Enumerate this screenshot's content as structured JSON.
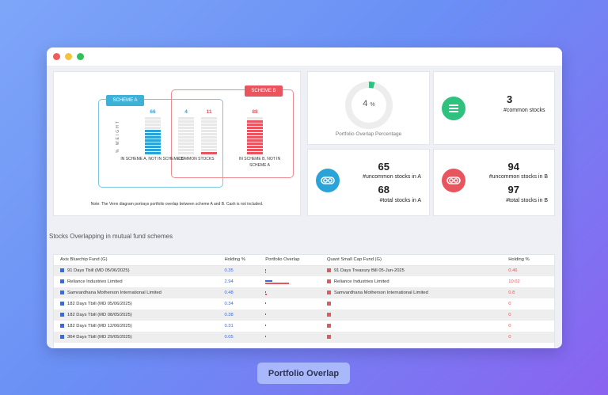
{
  "venn": {
    "scheme_a_label": "SCHEME A",
    "scheme_b_label": "SCHEME B",
    "weight_label": "% WEIGHT",
    "a_only_value": "66",
    "common_a_value": "4",
    "common_b_value": "11",
    "b_only_value": "88",
    "a_only_caption": "IN SCHEME A, NOT IN SCHEME B",
    "common_caption": "COMMON STOCKS",
    "b_only_caption": "IN SCHEME B, NOT IN SCHEME A",
    "note": "Note: The Venn diagram portrays portfolio overlap between scheme A and B. Cash is not included."
  },
  "overlap": {
    "value": "4",
    "unit": "%",
    "percent": 4,
    "caption": "Portfolio Overlap Percentage"
  },
  "common": {
    "count": "3",
    "label": "#common stocks"
  },
  "uncommon_a": {
    "count": "65",
    "label": "#uncommon stocks in A",
    "total": "68",
    "total_label": "#total stocks in A"
  },
  "uncommon_b": {
    "count": "94",
    "label": "#uncommon stocks in B",
    "total": "97",
    "total_label": "#total stocks in B"
  },
  "section_title": "Stocks Overlapping in mutual fund schemes",
  "table": {
    "headers": [
      "Axis Bluechip Fund (G)",
      "Holding %",
      "Portfolio Overlap",
      "Quant Small Cap Fund (G)",
      "Holding %"
    ],
    "rows": [
      {
        "a": "91 Days Tbill (MD 05/06/2025)",
        "ah": "0.35",
        "b": "91 Days Treasury Bill 05-Jun-2025",
        "bh": "0.46",
        "oa": 0.35,
        "ob": 0.46
      },
      {
        "a": "Reliance Industries Limited",
        "ah": "2.94",
        "b": "Reliance Industries Limited",
        "bh": "10.02",
        "oa": 2.94,
        "ob": 10.02
      },
      {
        "a": "Samvardhana Motherson International Limited",
        "ah": "0.48",
        "b": "Samvardhana Motherson International Limited",
        "bh": "0.8",
        "oa": 0.48,
        "ob": 0.8
      },
      {
        "a": "182 Days Tbill (MD 05/06/2025)",
        "ah": "0.34",
        "b": "",
        "bh": "0",
        "oa": 0.34,
        "ob": 0
      },
      {
        "a": "182 Days Tbill (MD 08/05/2025)",
        "ah": "0.38",
        "b": "",
        "bh": "0",
        "oa": 0.38,
        "ob": 0
      },
      {
        "a": "182 Days Tbill (MD 12/06/2025)",
        "ah": "0.31",
        "b": "",
        "bh": "0",
        "oa": 0.31,
        "ob": 0
      },
      {
        "a": "364 Days Tbill (MD 29/05/2025)",
        "ah": "0.05",
        "b": "",
        "bh": "0",
        "oa": 0.05,
        "ob": 0
      }
    ]
  },
  "footer_label": "Portfolio Overlap",
  "colors": {
    "scheme_a": "#2aa3d8",
    "scheme_b": "#e8555f",
    "overlap": "#2ec27e",
    "table_a": "#3b6bd8"
  }
}
